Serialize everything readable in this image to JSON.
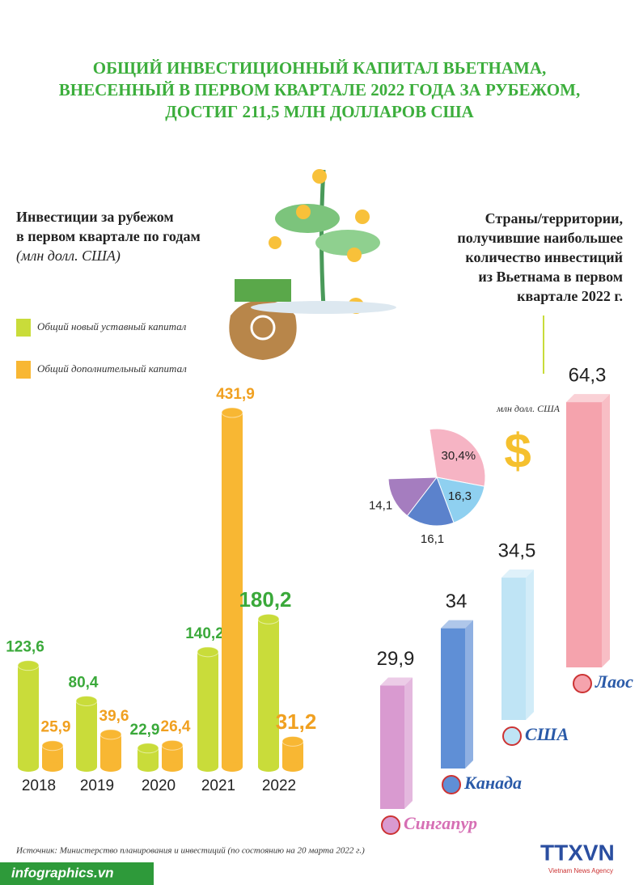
{
  "title": [
    "ОБЩИЙ ИНВЕСТИЦИОННЫЙ КАПИТАЛ ВЬЕТНАМА,",
    "ВНЕСЕННЫЙ В ПЕРВОМ КВАРТАЛЕ 2022 ГОДА ЗА РУБЕЖОМ,",
    "ДОСТИГ 211,5 МЛН ДОЛЛАРОВ США"
  ],
  "chart_data": [
    {
      "type": "bar",
      "title": [
        "Инвестиции за рубежом",
        "в первом квартале по годам"
      ],
      "subtitle": "(млн долл. США)",
      "categories": [
        "2018",
        "2019",
        "2020",
        "2021",
        "2022"
      ],
      "series": [
        {
          "name": "Общий новый уставный капитал",
          "color": "#c9dc3a",
          "values": [
            123.6,
            80.4,
            22.9,
            140.2,
            180.2
          ],
          "value_labels": [
            "123,6",
            "80,4",
            "22,9",
            "140,2",
            "180,2"
          ]
        },
        {
          "name": "Общий дополнительный капитал",
          "color": "#f8b733",
          "values": [
            25.9,
            39.6,
            26.4,
            431.9,
            31.2
          ],
          "value_labels": [
            "25,9",
            "39,6",
            "26,4",
            "431,9",
            "31,2"
          ]
        }
      ]
    },
    {
      "type": "bar3d",
      "title": [
        "Страны/территории,",
        "получившие наибольшее",
        "количество инвестиций",
        "из Вьетнама в первом",
        "квартале 2022 г."
      ],
      "unit": "млн долл. США",
      "categories": [
        "Сингапур",
        "Канада",
        "США",
        "Лаос"
      ],
      "values": [
        29.9,
        34,
        34.5,
        64.3
      ],
      "value_labels": [
        "29,9",
        "34",
        "34,5",
        "64,3"
      ],
      "colors": [
        "#d99ad0",
        "#5f8fd6",
        "#bfe4f5",
        "#f5a3ad"
      ]
    },
    {
      "type": "pie",
      "values": [
        30.4,
        16.3,
        16.1,
        14.1
      ],
      "value_labels": [
        "30,4%",
        "16,3",
        "16,1",
        "14,1"
      ],
      "colors": [
        "#f6b4c4",
        "#8fd0f0",
        "#5b82cc",
        "#a57dbf"
      ]
    }
  ],
  "source": "Источник: Министерство планирования и инвестиций (по состоянию на 20 марта 2022 г.)",
  "site": "infographics.vn",
  "brand": "TTXVN",
  "brand_sub": "Vietnam News Agency"
}
